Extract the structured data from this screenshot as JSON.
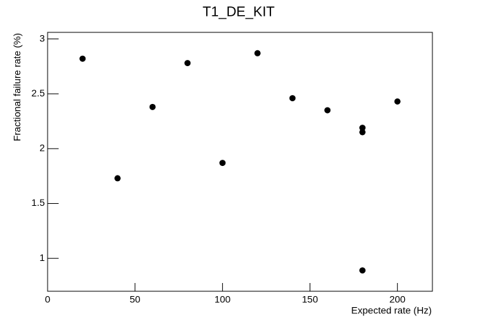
{
  "chart_data": {
    "type": "scatter",
    "title": "T1_DE_KIT",
    "x_label": "Expected rate (Hz)",
    "y_label": "Fractional failure rate (%)",
    "x": [
      20,
      40,
      60,
      80,
      100,
      120,
      140,
      160,
      180,
      180,
      180,
      200
    ],
    "values": [
      2.82,
      1.73,
      2.38,
      2.78,
      1.87,
      2.87,
      2.46,
      2.35,
      2.19,
      2.15,
      0.89,
      2.43
    ],
    "color": "#000000",
    "xlim": [
      0,
      220
    ],
    "xticks": [
      0,
      50,
      100,
      150,
      200
    ],
    "ylim": [
      0.7,
      3.06
    ],
    "yticks": [
      1,
      1.5,
      2,
      2.5,
      3
    ]
  }
}
